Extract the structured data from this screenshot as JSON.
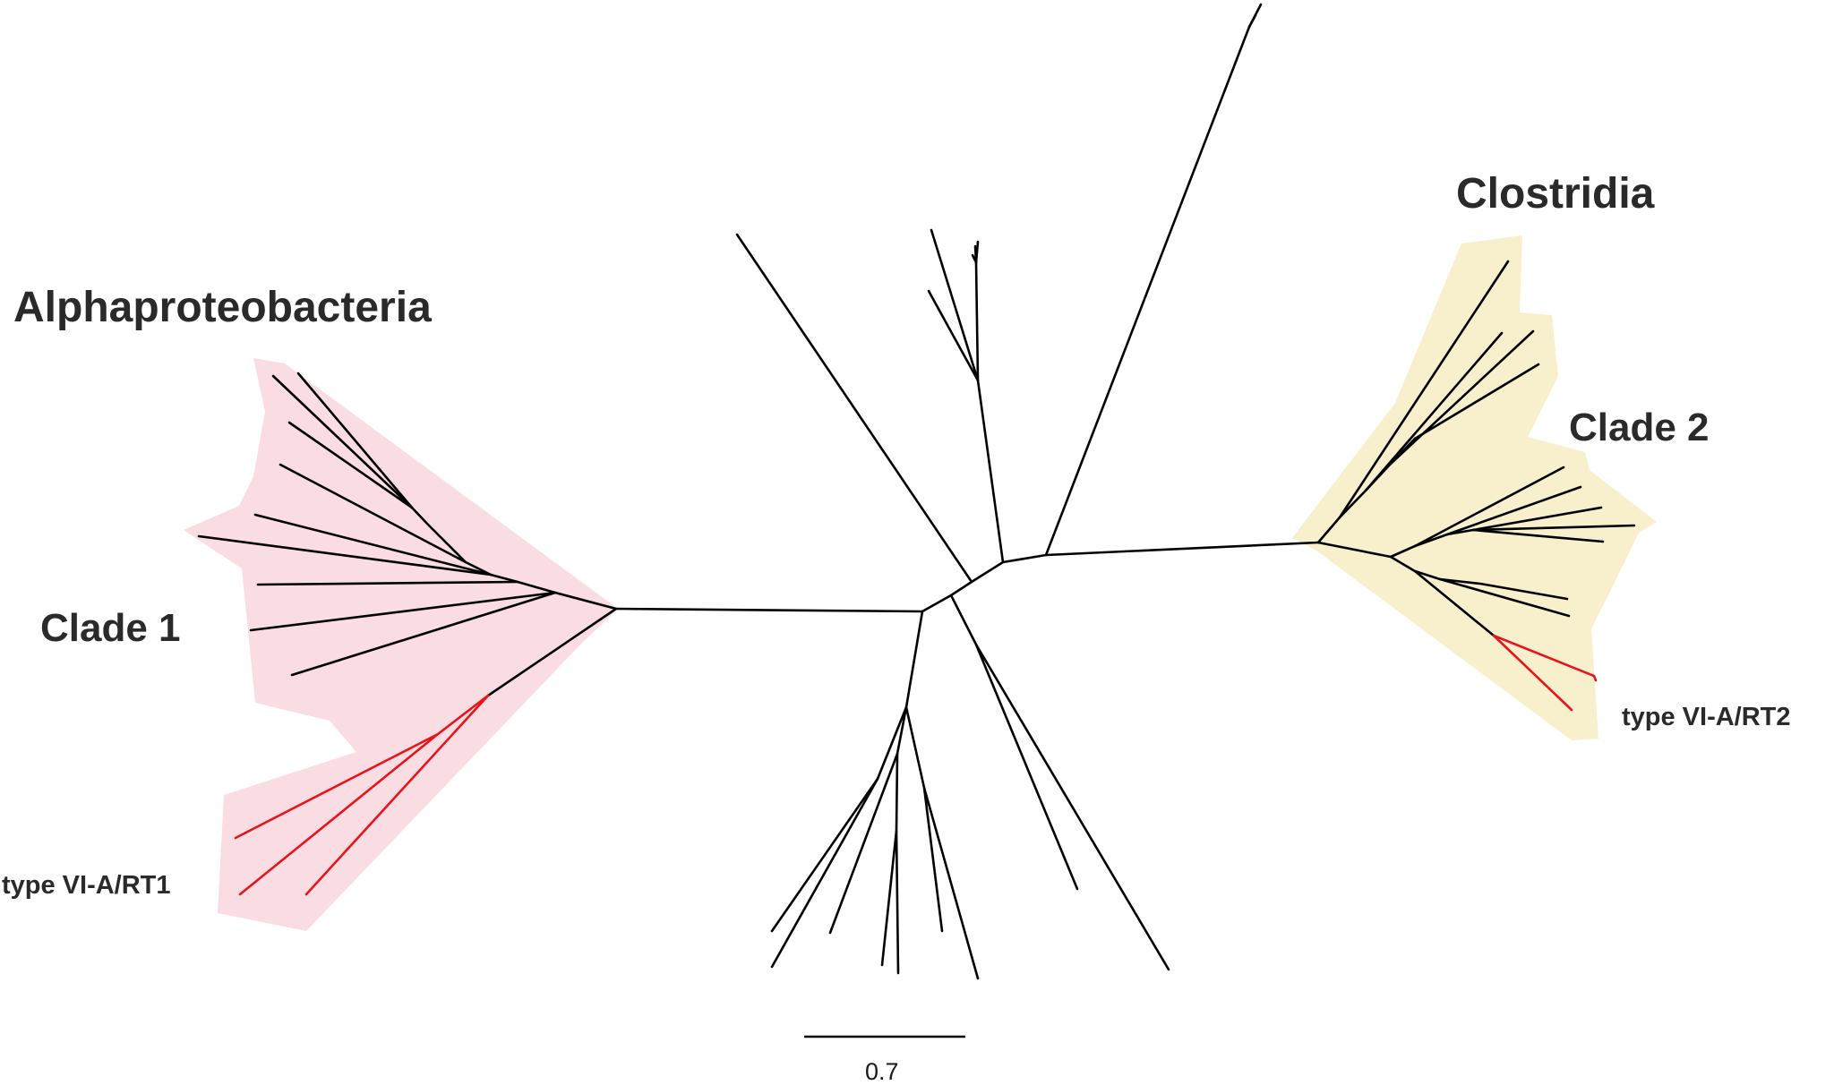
{
  "labels": {
    "alpha": "Alphaproteobacteria",
    "clostridia": "Clostridia",
    "clade1": "Clade 1",
    "clade2": "Clade 2",
    "rt1": "type VI-A/RT1",
    "rt2": "type VI-A/RT2"
  },
  "scale_bar": {
    "value": "0.7"
  },
  "colors": {
    "branch": "#000000",
    "highlight_branch": "#e8141c",
    "clade1_shade": "#fadce3",
    "clade2_shade": "#f8efcd",
    "text": "#2a2a2a"
  }
}
